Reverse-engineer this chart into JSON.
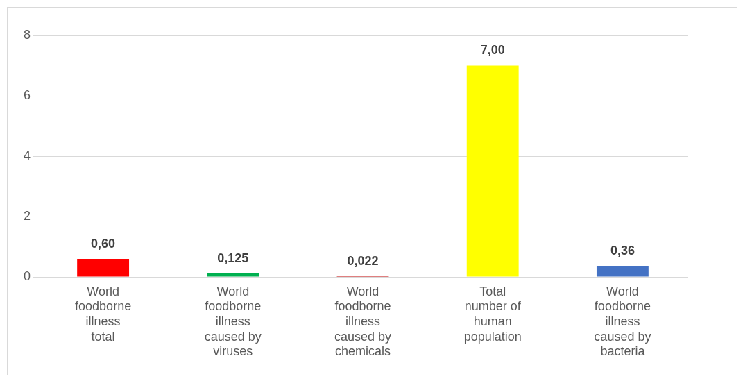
{
  "chart_data": {
    "type": "bar",
    "categories": [
      "World foodborne illness total",
      "World foodborne illness caused by viruses",
      "World foodborne illness caused by chemicals",
      "Total number of human population",
      "World foodborne illness caused by bacteria"
    ],
    "values": [
      0.6,
      0.125,
      0.022,
      7.0,
      0.36
    ],
    "value_labels": [
      "0,60",
      "0,125",
      "0,022",
      "7,00",
      "0,36"
    ],
    "colors": [
      "#ff0000",
      "#00b050",
      "#c00000",
      "#ffff00",
      "#4472c4"
    ],
    "ylim": [
      0,
      8
    ],
    "yticks": [
      0,
      2,
      4,
      6,
      8
    ],
    "grid": "y",
    "legend": false
  }
}
